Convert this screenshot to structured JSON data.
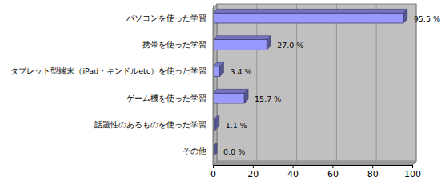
{
  "chart_data": {
    "type": "bar",
    "orientation": "horizontal",
    "categories": [
      "パソコンを使った学習",
      "携帯を使った学習",
      "タブレット型端末（iPad・キンドルetc）を使った学習",
      "ゲーム機を使った学習",
      "話題性のあるものを使った学習",
      "その他"
    ],
    "values": [
      95.5,
      27.0,
      3.4,
      15.7,
      1.1,
      0.0
    ],
    "value_labels": [
      "95.5 %",
      "27.0 %",
      "3.4 %",
      "15.7 %",
      "1.1 %",
      "0.0 %"
    ],
    "data_labels": true,
    "color": "#9999ff",
    "xlim": [
      0,
      100
    ],
    "xticks": [
      0,
      20,
      40,
      60,
      80,
      100
    ],
    "grid": true
  }
}
